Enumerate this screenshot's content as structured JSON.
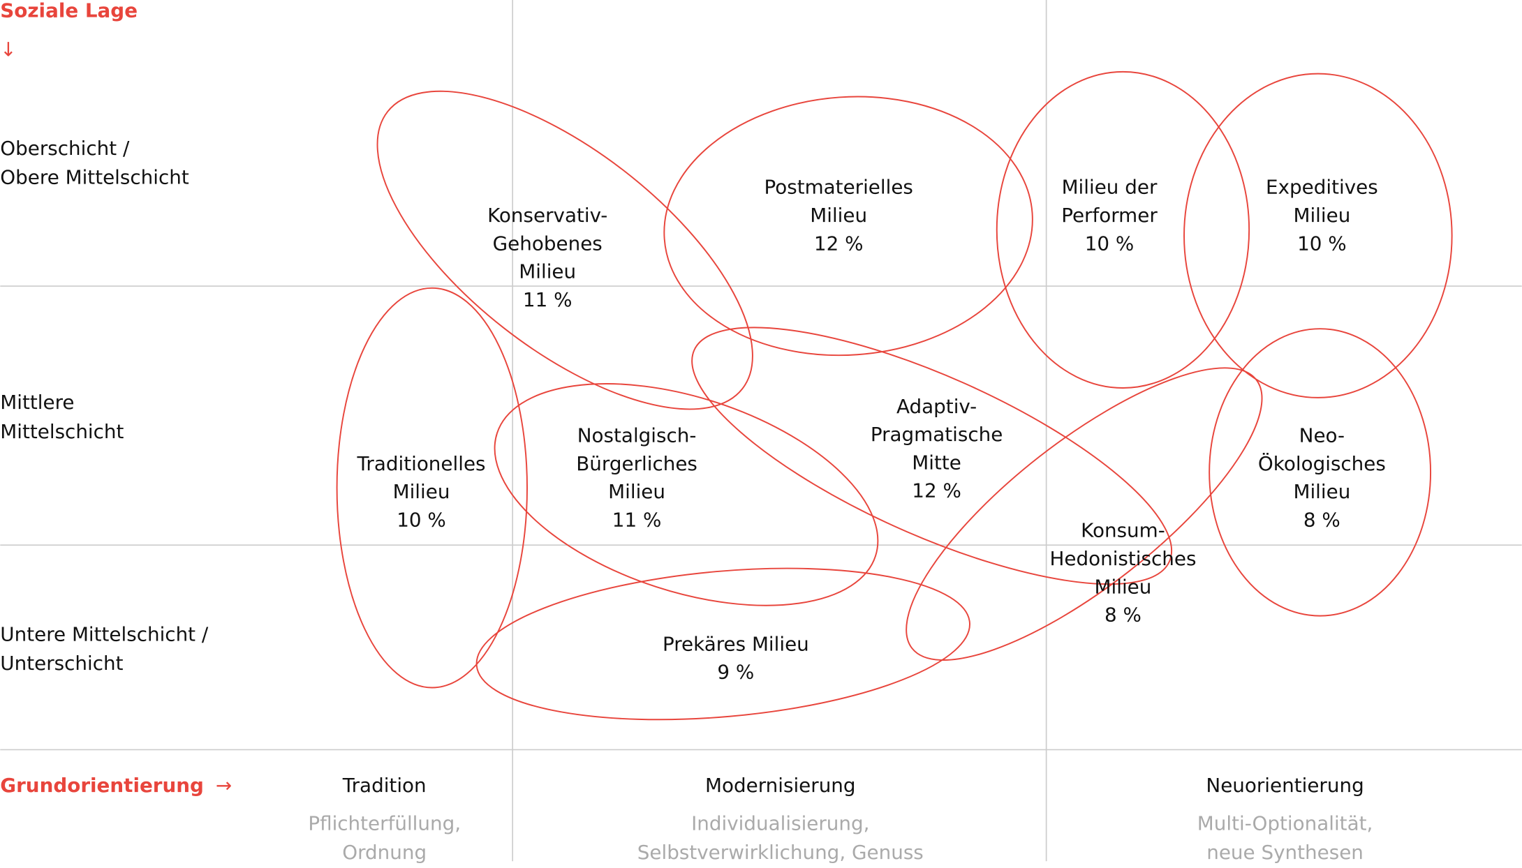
{
  "axes": {
    "y_title": "Soziale Lage",
    "y_arrow": "↓",
    "x_title": "Grundorientierung",
    "x_arrow": "→",
    "rows": [
      [
        "Oberschicht /",
        "Obere Mittelschicht"
      ],
      [
        "Mittlere",
        "Mittelschicht"
      ],
      [
        "Untere Mittelschicht /",
        "Unterschicht"
      ]
    ],
    "columns": [
      {
        "label": "Tradition",
        "sub": [
          "Pflichterfüllung,",
          "Ordnung"
        ]
      },
      {
        "label": "Modernisierung",
        "sub": [
          "Individualisierung,",
          "Selbstverwirklichung, Genuss"
        ]
      },
      {
        "label": "Neuorientierung",
        "sub": [
          "Multi-Optionalität,",
          "neue Synthesen"
        ]
      }
    ]
  },
  "milieus": [
    {
      "name": [
        "Konservativ-",
        "Gehobenes",
        "Milieu"
      ],
      "share": "11 %"
    },
    {
      "name": [
        "Postmaterielles",
        "Milieu"
      ],
      "share": "12 %"
    },
    {
      "name": [
        "Milieu der",
        "Performer"
      ],
      "share": "10 %"
    },
    {
      "name": [
        "Expeditives",
        "Milieu"
      ],
      "share": "10 %"
    },
    {
      "name": [
        "Traditionelles",
        "Milieu"
      ],
      "share": "10 %"
    },
    {
      "name": [
        "Nostalgisch-",
        "Bürgerliches",
        "Milieu"
      ],
      "share": "11 %"
    },
    {
      "name": [
        "Adaptiv-",
        "Pragmatische",
        "Mitte"
      ],
      "share": "12 %"
    },
    {
      "name": [
        "Neo-",
        "Ökologisches",
        "Milieu"
      ],
      "share": "8 %"
    },
    {
      "name": [
        "Konsum-",
        "Hedonistisches",
        "Milieu"
      ],
      "share": "8 %"
    },
    {
      "name": [
        "Prekäres Milieu"
      ],
      "share": "9 %"
    }
  ]
}
